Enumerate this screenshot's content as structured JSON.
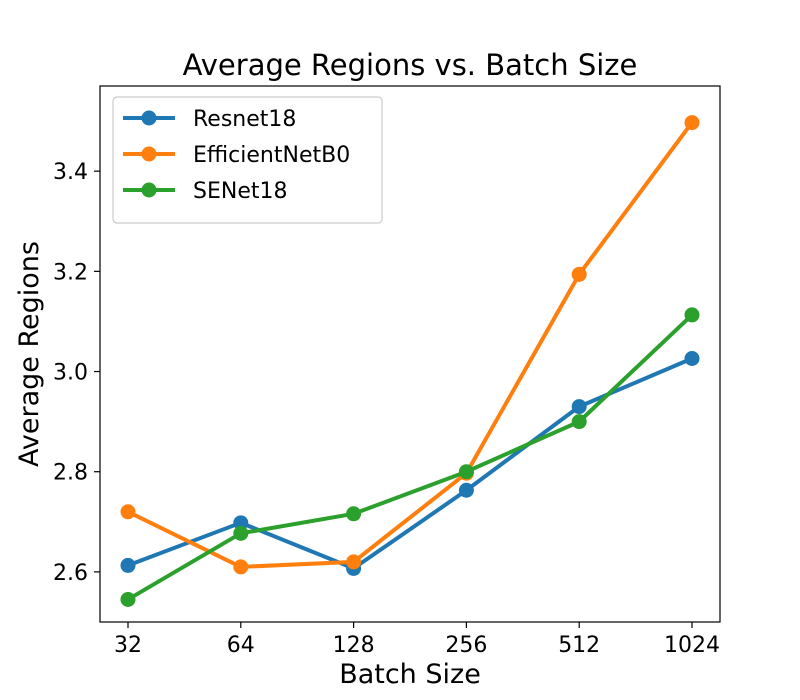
{
  "chart_data": {
    "type": "line",
    "title": "Average Regions vs. Batch Size",
    "xlabel": "Batch Size",
    "ylabel": "Average Regions",
    "x": [
      "32",
      "64",
      "128",
      "256",
      "512",
      "1024"
    ],
    "x_scale": "log2",
    "ylim": [
      2.5,
      3.57
    ],
    "yticks": [
      "2.6",
      "2.8",
      "3.0",
      "3.2",
      "3.4"
    ],
    "grid": false,
    "legend_position": "top-left",
    "series": [
      {
        "name": "Resnet18",
        "color": "#1f77b4",
        "values": [
          2.613,
          2.698,
          2.607,
          2.763,
          2.93,
          3.026
        ]
      },
      {
        "name": "EfficientNetB0",
        "color": "#ff7f0e",
        "values": [
          2.72,
          2.61,
          2.62,
          2.797,
          3.194,
          3.497
        ]
      },
      {
        "name": "SENet18",
        "color": "#2ca02c",
        "values": [
          2.545,
          2.677,
          2.716,
          2.8,
          2.9,
          3.113
        ]
      }
    ]
  }
}
